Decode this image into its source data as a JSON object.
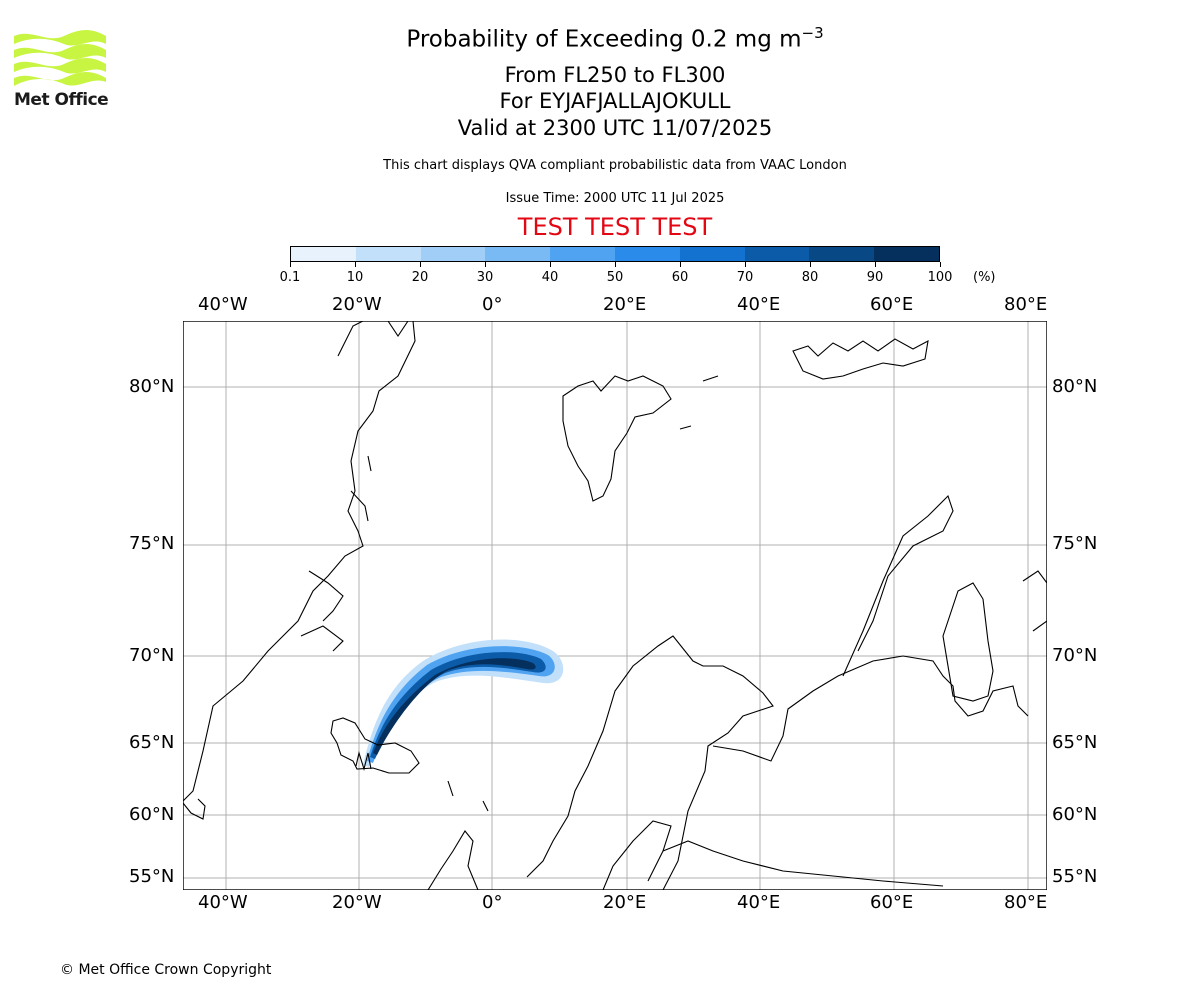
{
  "brand": {
    "name": "Met Office",
    "logo_color": "#c8f542"
  },
  "header": {
    "title_main": "Probability of Exceeding 0.2 mg m",
    "title_sup": "−3",
    "levels": "From FL250 to FL300",
    "volcano": "For EYJAFJALLAJOKULL",
    "valid": "Valid at 2300 UTC 11/07/2025",
    "description": "This chart displays QVA compliant probabilistic data from VAAC London",
    "issue_time": "Issue Time: 2000 UTC 11 Jul 2025",
    "test_banner": "TEST TEST TEST",
    "test_color": "#e30613"
  },
  "colorbar": {
    "ticks": [
      "0.1",
      "10",
      "20",
      "30",
      "40",
      "50",
      "60",
      "70",
      "80",
      "90",
      "100"
    ],
    "unit": "(%)",
    "colors": [
      "#e8f2fd",
      "#c3e0fa",
      "#a0cef7",
      "#79b9f4",
      "#4fa3f0",
      "#2a8bea",
      "#1372d0",
      "#0c5ba8",
      "#084884",
      "#052f5c"
    ]
  },
  "map": {
    "lon_labels": [
      "40°W",
      "20°W",
      "0°",
      "20°E",
      "40°E",
      "60°E",
      "80°E"
    ],
    "lat_labels": [
      "80°N",
      "75°N",
      "70°N",
      "65°N",
      "60°N",
      "55°N"
    ],
    "grid_color": "#b0b0b0"
  },
  "footer": {
    "copyright": "© Met Office Crown Copyright"
  }
}
